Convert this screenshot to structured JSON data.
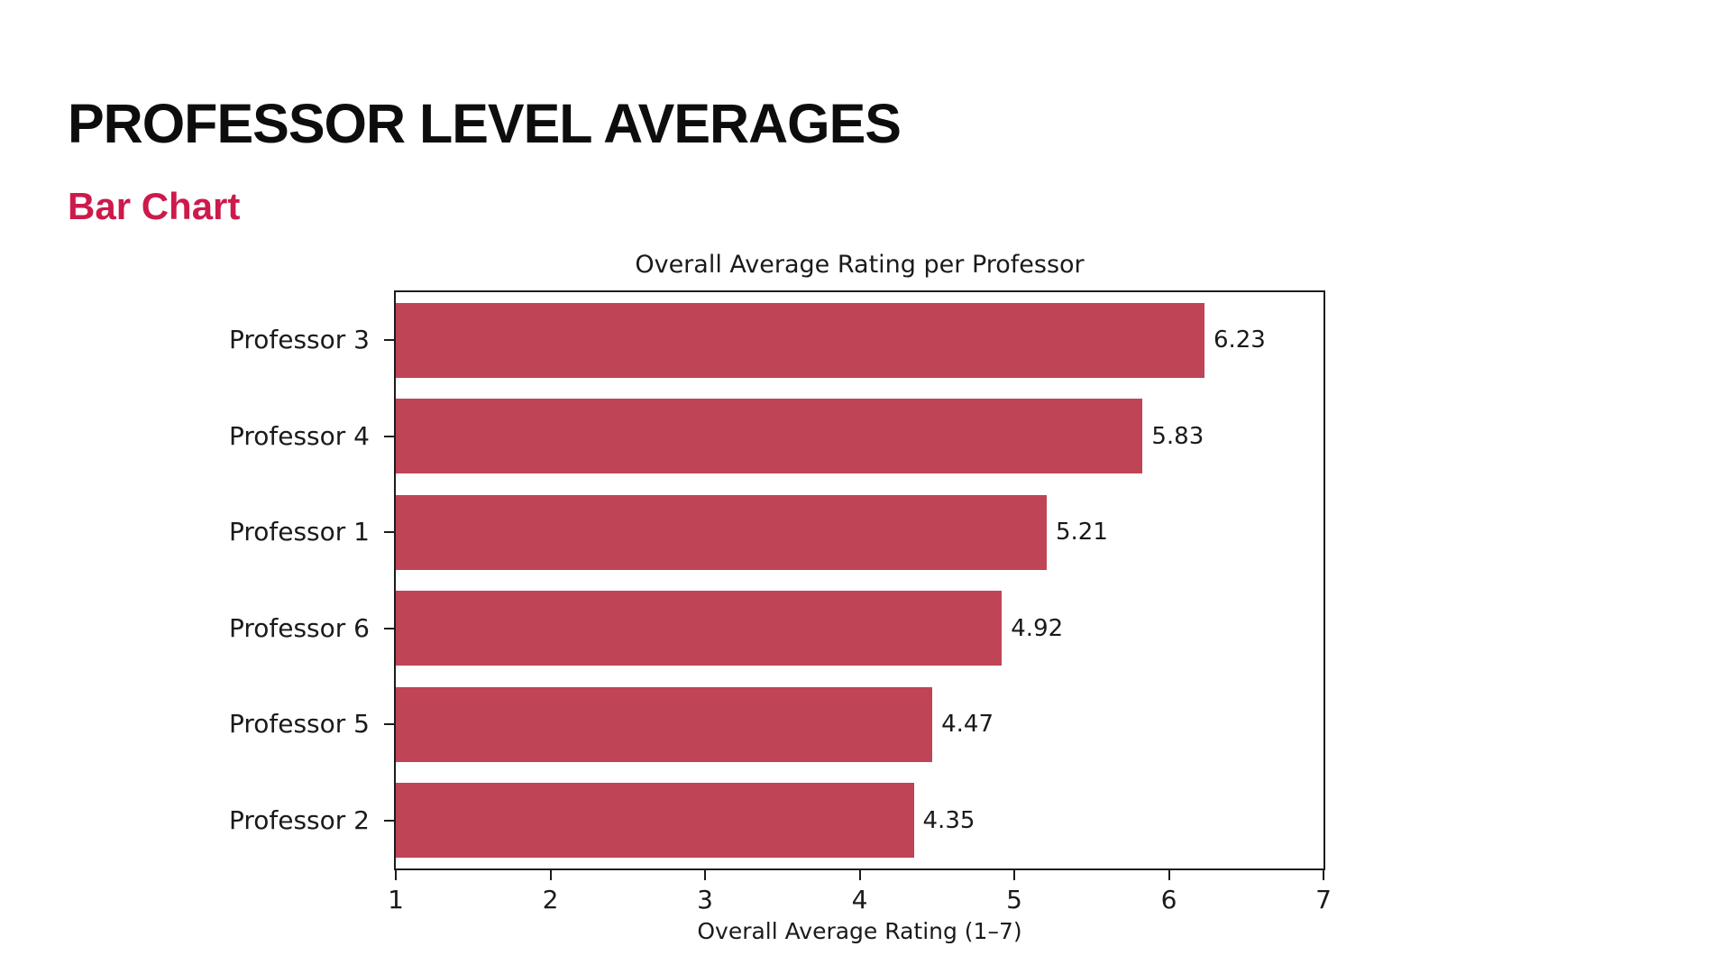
{
  "header": {
    "title": "PROFESSOR LEVEL AVERAGES",
    "subtitle": "Bar Chart"
  },
  "colors": {
    "accent": "#cd1a4b",
    "bar": "#bf4456",
    "axis": "#1c1c1c",
    "text": "#1a1a1a",
    "background": "#ffffff"
  },
  "chart_data": {
    "type": "bar",
    "orientation": "horizontal",
    "title": "Overall Average Rating per Professor",
    "categories": [
      "Professor 3",
      "Professor 4",
      "Professor 1",
      "Professor 6",
      "Professor 5",
      "Professor 2"
    ],
    "values": [
      6.23,
      5.83,
      5.21,
      4.92,
      4.47,
      4.35
    ],
    "value_labels": [
      "6.23",
      "5.83",
      "5.21",
      "4.92",
      "4.47",
      "4.35"
    ],
    "xlabel": "Overall Average Rating (1–7)",
    "ylabel": "",
    "xlim": [
      1,
      7
    ],
    "x_ticks": [
      1,
      2,
      3,
      4,
      5,
      6,
      7
    ],
    "grid": false,
    "legend": false,
    "bar_color": "#bf4456"
  }
}
